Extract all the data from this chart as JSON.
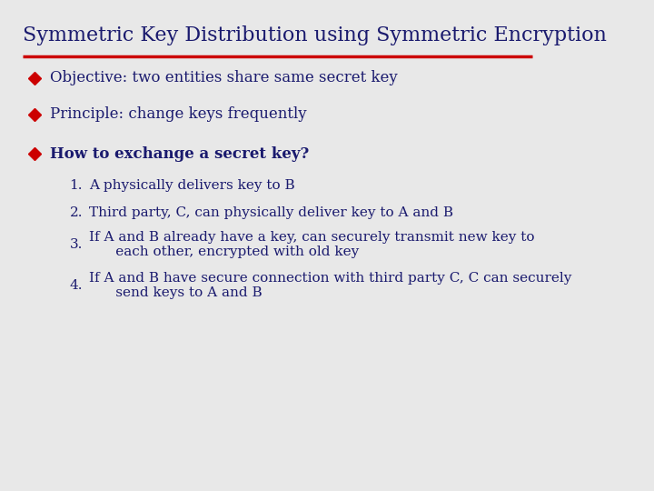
{
  "title": "Symmetric Key Distribution using Symmetric Encryption",
  "title_color": "#1a1a6e",
  "title_fontsize": 16,
  "background_color": "#e8e8e8",
  "red_line_color": "#cc0000",
  "bullet_color": "#cc0000",
  "text_color": "#1a1a6e",
  "bullet_items": [
    "Objective: two entities share same secret key",
    "Principle: change keys frequently",
    "How to exchange a secret key?"
  ],
  "bullet_bold": [
    false,
    false,
    true
  ],
  "numbered_items": [
    "A physically delivers key to B",
    "Third party, C, can physically deliver key to A and B",
    "If A and B already have a key, can securely transmit new key to\n      each other, encrypted with old key",
    "If A and B have secure connection with third party C, C can securely\n      send keys to A and B"
  ]
}
